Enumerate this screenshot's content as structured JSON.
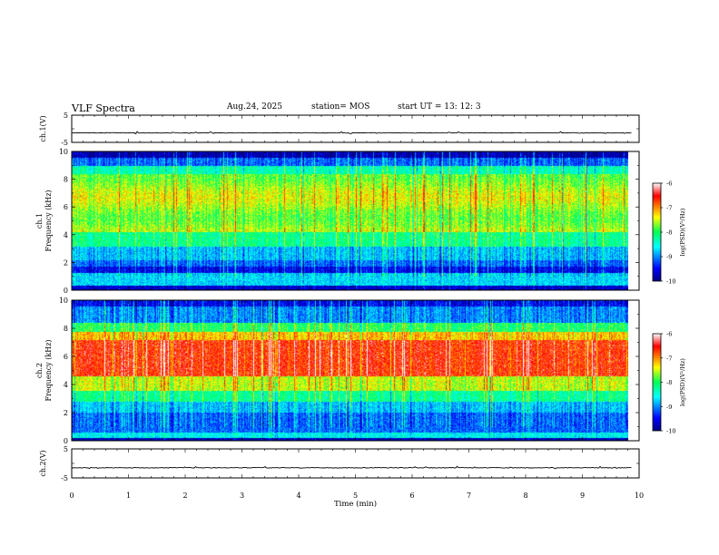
{
  "header": {
    "title": "VLF Spectra",
    "date": "Aug.24, 2025",
    "station": "station= MOS",
    "start": "start  UT  =   13: 12: 3"
  },
  "chart_data": [
    {
      "type": "line",
      "ylabel": "ch.1(V)",
      "ylim": [
        -5,
        5
      ],
      "yticks": [
        "5",
        "-5"
      ],
      "xlim": [
        0,
        10
      ],
      "series_level": -1.5
    },
    {
      "type": "heatmap",
      "ylabel": "ch.1\nFrequency (kHz)",
      "ylim": [
        0,
        10
      ],
      "yticks": [
        "0",
        "2",
        "4",
        "6",
        "8",
        "10"
      ],
      "xlim": [
        0,
        9.8
      ],
      "colorbar": {
        "label": "log(PSD)(V²/Hz)",
        "range": [
          -10,
          -6
        ],
        "ticks": [
          "-6",
          "-7",
          "-8",
          "-9",
          "-10"
        ]
      }
    },
    {
      "type": "heatmap",
      "ylabel": "ch.2\nFrequency (kHz)",
      "ylim": [
        0,
        10
      ],
      "yticks": [
        "0",
        "2",
        "4",
        "6",
        "8",
        "10"
      ],
      "xlim": [
        0,
        9.8
      ],
      "colorbar": {
        "label": "log(PSD)(V²/Hz)",
        "range": [
          -10,
          -6
        ],
        "ticks": [
          "-6",
          "-7",
          "-8",
          "-9",
          "-10"
        ]
      }
    },
    {
      "type": "line",
      "ylabel": "ch.2(V)",
      "ylim": [
        -5,
        5
      ],
      "yticks": [
        "5",
        "-5"
      ],
      "xlim": [
        0,
        10
      ],
      "series_level": -1.5
    }
  ],
  "xaxis": {
    "label": "Time  (min)",
    "ticks": [
      "0",
      "1",
      "2",
      "3",
      "4",
      "5",
      "6",
      "7",
      "8",
      "9",
      "10"
    ]
  }
}
